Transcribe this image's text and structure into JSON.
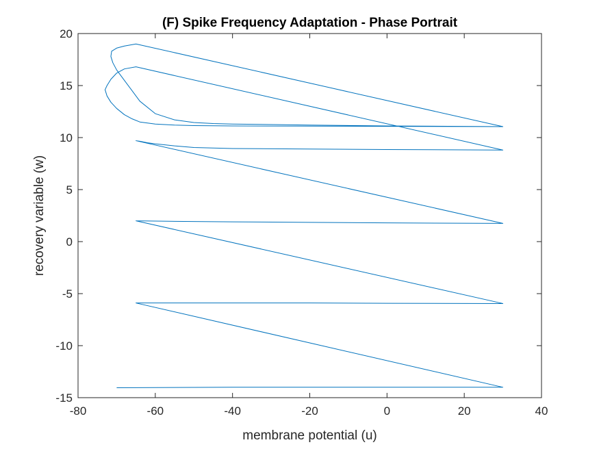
{
  "chart_data": {
    "type": "line",
    "title": "(F) Spike Frequency Adaptation  - Phase Portrait",
    "xlabel": "membrane potential (u)",
    "ylabel": "recovery variable (w)",
    "xlim": [
      -80,
      40
    ],
    "ylim": [
      -15,
      20
    ],
    "x_ticks": [
      -80,
      -60,
      -40,
      -20,
      0,
      20,
      40
    ],
    "y_ticks": [
      -15,
      -10,
      -5,
      0,
      5,
      10,
      15,
      20
    ],
    "grid": false,
    "box": true,
    "line_color": "#0072BD",
    "series": [
      {
        "x": [
          -70,
          -40,
          0,
          30,
          -65,
          30,
          -65,
          -60,
          -40,
          -20,
          0,
          30,
          -65,
          30,
          -65,
          -60,
          -40,
          -20,
          0,
          30,
          -65,
          30,
          -65,
          -64,
          -62,
          -60,
          -55,
          -50,
          -40,
          -20,
          0,
          30,
          -65,
          -68,
          -70,
          -71.5,
          -72.5,
          -73,
          -72.5,
          -71.5,
          -70,
          -68,
          -66,
          -64,
          -60,
          -55,
          -50,
          -40,
          -20,
          0,
          30,
          -65,
          -68,
          -70,
          -71.3,
          -71.5,
          -71,
          -70,
          -68,
          -66,
          -64,
          -60,
          -55,
          -50,
          -45,
          -40,
          -20,
          0,
          30,
          -65
        ],
        "y": [
          -14.05,
          -14.0,
          -14.0,
          -14.0,
          -5.9,
          -14.0,
          -5.9,
          -5.9,
          -5.9,
          -5.9,
          -5.93,
          -5.95,
          2.0,
          -5.95,
          2.0,
          1.97,
          1.9,
          1.85,
          1.8,
          1.75,
          9.7,
          1.75,
          9.7,
          9.65,
          9.5,
          9.4,
          9.2,
          9.05,
          8.95,
          8.9,
          8.85,
          8.8,
          16.8,
          16.6,
          16.2,
          15.6,
          15.0,
          14.6,
          14.0,
          13.4,
          12.8,
          12.2,
          11.8,
          11.5,
          11.3,
          11.2,
          11.15,
          11.12,
          11.1,
          11.08,
          11.05,
          19.0,
          18.8,
          18.6,
          18.3,
          17.8,
          17.2,
          16.5,
          15.5,
          14.5,
          13.5,
          12.3,
          11.7,
          11.45,
          11.35,
          11.3,
          11.2,
          11.12,
          11.05,
          19.0
        ]
      }
    ]
  }
}
